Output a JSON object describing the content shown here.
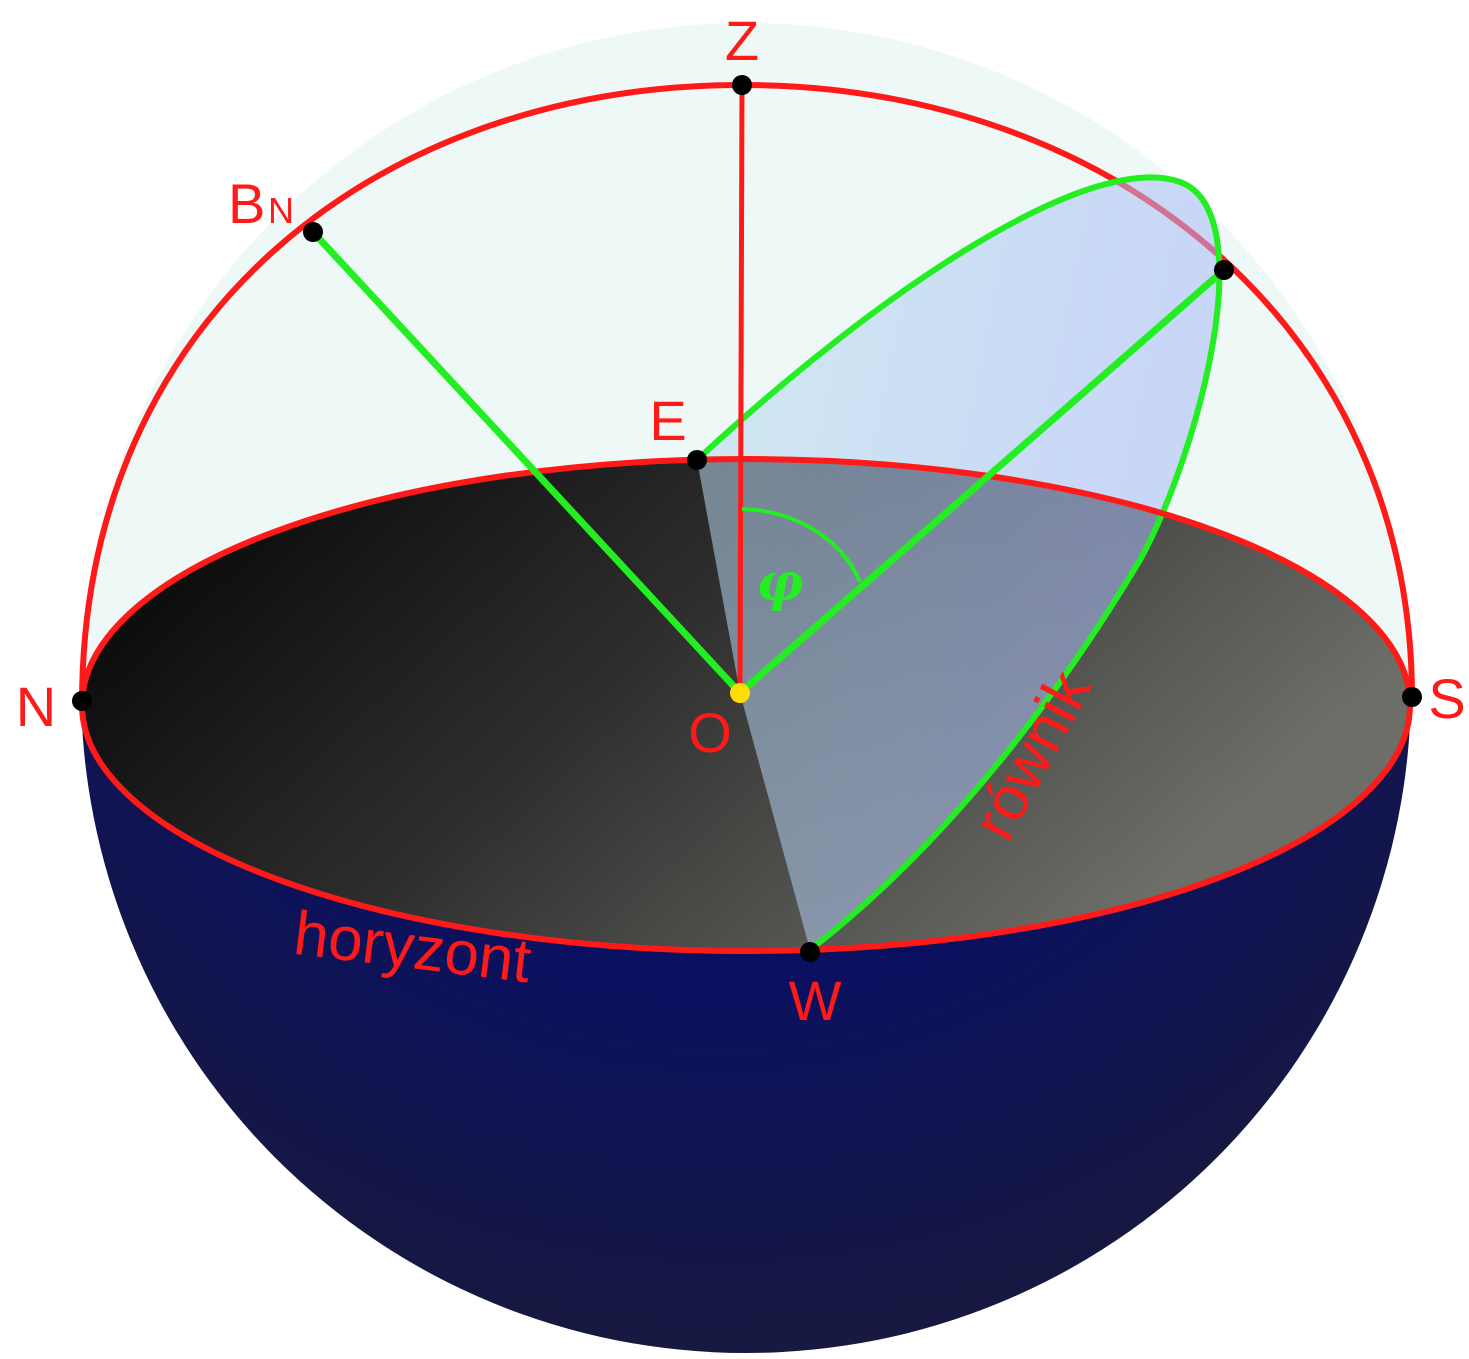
{
  "labels": {
    "zenith": "Z",
    "north_pole": "B",
    "north_pole_sub": "N",
    "east": "E",
    "west": "W",
    "north": "N",
    "south": "S",
    "center": "O",
    "angle": "φ",
    "horizon": "horyzont",
    "equator": "równik"
  },
  "colors": {
    "meridian_line": "#ff1a1a",
    "equator_axis_line": "#22ee22",
    "center_point": "#ffdd00",
    "point": "#000000",
    "upper_hemisphere": "#eef9f7",
    "lower_hemisphere": "#000c8a",
    "equator_plane": "#a9c2f7"
  }
}
